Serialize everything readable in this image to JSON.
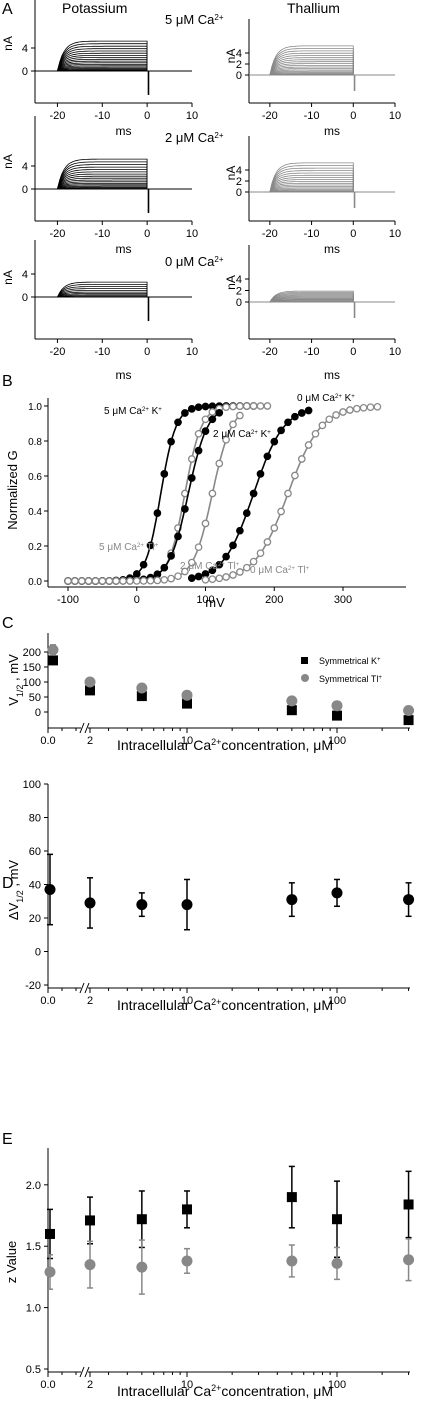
{
  "panel_letters": [
    "A",
    "B",
    "C",
    "D",
    "E"
  ],
  "chart_data": [
    {
      "id": "A",
      "type": "line",
      "description_kind": "current traces",
      "column_titles": [
        "Potassium",
        "Thallium"
      ],
      "rows": [
        {
          "condition": "5 μM Ca",
          "ca_super": "2+",
          "k_traces": 18,
          "k_max": 5.2,
          "tl_traces": 18,
          "tl_max": 5.3
        },
        {
          "condition": "2 μM Ca",
          "ca_super": "2+",
          "k_traces": 17,
          "k_max": 5.2,
          "tl_traces": 17,
          "tl_max": 5.3
        },
        {
          "condition": "0 μM Ca",
          "ca_super": "2+",
          "k_traces": 10,
          "k_max": 2.6,
          "tl_traces": 14,
          "tl_max": 1.9
        }
      ],
      "xlabel": "ms",
      "ylabel": "nA",
      "x_ticks": [
        -20,
        -10,
        0,
        10
      ],
      "k_y_ticks": [
        0,
        4
      ],
      "tl_y_ticks": [
        0,
        2,
        4
      ],
      "k_color": "#000000",
      "tl_color": "#888888"
    },
    {
      "id": "B",
      "type": "scatter",
      "xlabel": "mV",
      "ylabel": "Normalized G",
      "xlim": [
        -110,
        360
      ],
      "ylim": [
        -0.03,
        1.08
      ],
      "x_ticks": [
        -100,
        0,
        100,
        200,
        300
      ],
      "y_ticks": [
        0.0,
        0.2,
        0.4,
        0.6,
        0.8,
        1.0
      ],
      "series": [
        {
          "ion": "K",
          "ca": "5 μM",
          "vhalf": 35,
          "k": 11,
          "xmin": -100,
          "xmax": 170,
          "step": 10,
          "filled": true
        },
        {
          "ion": "Tl",
          "ca": "5 μM",
          "vhalf": 70,
          "k": 12,
          "xmin": -100,
          "xmax": 190,
          "step": 10,
          "filled": false
        },
        {
          "ion": "K",
          "ca": "2 μM",
          "vhalf": 75,
          "k": 14,
          "xmin": -100,
          "xmax": 120,
          "step": 10,
          "filled": true
        },
        {
          "ion": "Tl",
          "ca": "2 μM",
          "vhalf": 110,
          "k": 14,
          "xmin": -100,
          "xmax": 150,
          "step": 10,
          "filled": false
        },
        {
          "ion": "K",
          "ca": "0 μM",
          "vhalf": 170,
          "k": 22,
          "xmin": 80,
          "xmax": 250,
          "step": 10,
          "filled": true
        },
        {
          "ion": "Tl",
          "ca": "0 μM",
          "vhalf": 220,
          "k": 24,
          "xmin": 100,
          "xmax": 350,
          "step": 10,
          "filled": false
        }
      ],
      "labels": [
        {
          "ca": "5 μM",
          "ion": "K"
        },
        {
          "ca": "2 μM",
          "ion": "K"
        },
        {
          "ca": "0 μM",
          "ion": "K"
        },
        {
          "ca": "5 μM",
          "ion": "Tl"
        },
        {
          "ca": "2 μM",
          "ion": "Tl"
        },
        {
          "ca": "0 μM",
          "ion": "Tl"
        }
      ]
    },
    {
      "id": "C",
      "type": "scatter",
      "ylabel": "V1/2 , mV",
      "xlabel": "Intracellular Ca2+concentration, μM",
      "ylim": [
        -30,
        230
      ],
      "y_ticks": [
        0,
        50,
        100,
        150,
        200
      ],
      "x_tick_labels": [
        "0.0",
        "0",
        "2",
        "10",
        "100"
      ],
      "legend": [
        "Symmetrical K+",
        "Symmetrical Tl +"
      ],
      "series": [
        {
          "name": "Symmetrical K+",
          "marker": "square",
          "color": "#000000",
          "points": [
            [
              0,
              172,
              9
            ],
            [
              2,
              72,
              10
            ],
            [
              5,
              53,
              5
            ],
            [
              10,
              28,
              9
            ],
            [
              50,
              6,
              7
            ],
            [
              100,
              -12,
              8
            ],
            [
              300,
              -27,
              6
            ]
          ]
        },
        {
          "name": "Symmetrical Tl +",
          "marker": "circle",
          "color": "#888888",
          "points": [
            [
              0,
              207,
              17
            ],
            [
              2,
              100,
              10
            ],
            [
              5,
              80,
              3
            ],
            [
              10,
              56,
              13
            ],
            [
              50,
              37,
              7
            ],
            [
              100,
              21,
              3
            ],
            [
              300,
              5,
              9
            ]
          ]
        }
      ]
    },
    {
      "id": "D",
      "type": "scatter",
      "ylabel": "ΔV1/2 , mV",
      "xlabel": "Intracellular Ca2+concentration, μM",
      "ylim": [
        -25,
        100
      ],
      "y_ticks": [
        -20,
        0,
        20,
        40,
        60,
        80,
        100
      ],
      "x_tick_labels": [
        "0.0",
        "0",
        "2",
        "10",
        "100"
      ],
      "series": [
        {
          "name": "ΔV1/2",
          "marker": "circle",
          "color": "#000000",
          "points": [
            [
              0,
              37,
              21
            ],
            [
              2,
              29,
              15
            ],
            [
              5,
              28,
              7
            ],
            [
              10,
              28,
              15
            ],
            [
              50,
              31,
              10
            ],
            [
              100,
              35,
              8
            ],
            [
              300,
              31,
              10
            ]
          ]
        }
      ]
    },
    {
      "id": "E",
      "type": "scatter",
      "ylabel": "z Value",
      "xlabel": "Intracellular Ca2+concentration, μM",
      "ylim": [
        0.5,
        2.3
      ],
      "y_ticks": [
        0.5,
        1.0,
        1.5,
        2.0
      ],
      "x_tick_labels": [
        "0.0",
        "0",
        "2",
        "10",
        "100"
      ],
      "series": [
        {
          "name": "K",
          "marker": "square",
          "color": "#000000",
          "points": [
            [
              0,
              1.6,
              0.2
            ],
            [
              2,
              1.71,
              0.19
            ],
            [
              5,
              1.72,
              0.23
            ],
            [
              10,
              1.8,
              0.15
            ],
            [
              50,
              1.9,
              0.25
            ],
            [
              100,
              1.72,
              0.31
            ],
            [
              300,
              1.84,
              0.27
            ]
          ]
        },
        {
          "name": "Tl",
          "marker": "circle",
          "color": "#888888",
          "points": [
            [
              0,
              1.29,
              0.14
            ],
            [
              2,
              1.35,
              0.19
            ],
            [
              5,
              1.33,
              0.22
            ],
            [
              10,
              1.38,
              0.1
            ],
            [
              50,
              1.38,
              0.13
            ],
            [
              100,
              1.36,
              0.13
            ],
            [
              300,
              1.39,
              0.17
            ]
          ]
        }
      ]
    }
  ]
}
